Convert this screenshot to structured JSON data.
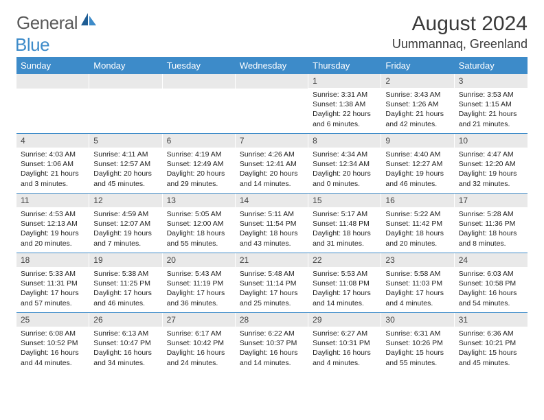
{
  "logo": {
    "text1": "General",
    "text2": "Blue"
  },
  "title": "August 2024",
  "location": "Uummannaq, Greenland",
  "day_headers": [
    "Sunday",
    "Monday",
    "Tuesday",
    "Wednesday",
    "Thursday",
    "Friday",
    "Saturday"
  ],
  "colors": {
    "header_bg": "#3d8bc9",
    "daynum_bg": "#e9e9e9",
    "rule": "#3d8bc9",
    "text": "#222222"
  },
  "weeks": [
    [
      {
        "n": "",
        "sr": "",
        "ss": "",
        "dl": ""
      },
      {
        "n": "",
        "sr": "",
        "ss": "",
        "dl": ""
      },
      {
        "n": "",
        "sr": "",
        "ss": "",
        "dl": ""
      },
      {
        "n": "",
        "sr": "",
        "ss": "",
        "dl": ""
      },
      {
        "n": "1",
        "sr": "Sunrise: 3:31 AM",
        "ss": "Sunset: 1:38 AM",
        "dl": "Daylight: 22 hours and 6 minutes."
      },
      {
        "n": "2",
        "sr": "Sunrise: 3:43 AM",
        "ss": "Sunset: 1:26 AM",
        "dl": "Daylight: 21 hours and 42 minutes."
      },
      {
        "n": "3",
        "sr": "Sunrise: 3:53 AM",
        "ss": "Sunset: 1:15 AM",
        "dl": "Daylight: 21 hours and 21 minutes."
      }
    ],
    [
      {
        "n": "4",
        "sr": "Sunrise: 4:03 AM",
        "ss": "Sunset: 1:06 AM",
        "dl": "Daylight: 21 hours and 3 minutes."
      },
      {
        "n": "5",
        "sr": "Sunrise: 4:11 AM",
        "ss": "Sunset: 12:57 AM",
        "dl": "Daylight: 20 hours and 45 minutes."
      },
      {
        "n": "6",
        "sr": "Sunrise: 4:19 AM",
        "ss": "Sunset: 12:49 AM",
        "dl": "Daylight: 20 hours and 29 minutes."
      },
      {
        "n": "7",
        "sr": "Sunrise: 4:26 AM",
        "ss": "Sunset: 12:41 AM",
        "dl": "Daylight: 20 hours and 14 minutes."
      },
      {
        "n": "8",
        "sr": "Sunrise: 4:34 AM",
        "ss": "Sunset: 12:34 AM",
        "dl": "Daylight: 20 hours and 0 minutes."
      },
      {
        "n": "9",
        "sr": "Sunrise: 4:40 AM",
        "ss": "Sunset: 12:27 AM",
        "dl": "Daylight: 19 hours and 46 minutes."
      },
      {
        "n": "10",
        "sr": "Sunrise: 4:47 AM",
        "ss": "Sunset: 12:20 AM",
        "dl": "Daylight: 19 hours and 32 minutes."
      }
    ],
    [
      {
        "n": "11",
        "sr": "Sunrise: 4:53 AM",
        "ss": "Sunset: 12:13 AM",
        "dl": "Daylight: 19 hours and 20 minutes."
      },
      {
        "n": "12",
        "sr": "Sunrise: 4:59 AM",
        "ss": "Sunset: 12:07 AM",
        "dl": "Daylight: 19 hours and 7 minutes."
      },
      {
        "n": "13",
        "sr": "Sunrise: 5:05 AM",
        "ss": "Sunset: 12:00 AM",
        "dl": "Daylight: 18 hours and 55 minutes."
      },
      {
        "n": "14",
        "sr": "Sunrise: 5:11 AM",
        "ss": "Sunset: 11:54 PM",
        "dl": "Daylight: 18 hours and 43 minutes."
      },
      {
        "n": "15",
        "sr": "Sunrise: 5:17 AM",
        "ss": "Sunset: 11:48 PM",
        "dl": "Daylight: 18 hours and 31 minutes."
      },
      {
        "n": "16",
        "sr": "Sunrise: 5:22 AM",
        "ss": "Sunset: 11:42 PM",
        "dl": "Daylight: 18 hours and 20 minutes."
      },
      {
        "n": "17",
        "sr": "Sunrise: 5:28 AM",
        "ss": "Sunset: 11:36 PM",
        "dl": "Daylight: 18 hours and 8 minutes."
      }
    ],
    [
      {
        "n": "18",
        "sr": "Sunrise: 5:33 AM",
        "ss": "Sunset: 11:31 PM",
        "dl": "Daylight: 17 hours and 57 minutes."
      },
      {
        "n": "19",
        "sr": "Sunrise: 5:38 AM",
        "ss": "Sunset: 11:25 PM",
        "dl": "Daylight: 17 hours and 46 minutes."
      },
      {
        "n": "20",
        "sr": "Sunrise: 5:43 AM",
        "ss": "Sunset: 11:19 PM",
        "dl": "Daylight: 17 hours and 36 minutes."
      },
      {
        "n": "21",
        "sr": "Sunrise: 5:48 AM",
        "ss": "Sunset: 11:14 PM",
        "dl": "Daylight: 17 hours and 25 minutes."
      },
      {
        "n": "22",
        "sr": "Sunrise: 5:53 AM",
        "ss": "Sunset: 11:08 PM",
        "dl": "Daylight: 17 hours and 14 minutes."
      },
      {
        "n": "23",
        "sr": "Sunrise: 5:58 AM",
        "ss": "Sunset: 11:03 PM",
        "dl": "Daylight: 17 hours and 4 minutes."
      },
      {
        "n": "24",
        "sr": "Sunrise: 6:03 AM",
        "ss": "Sunset: 10:58 PM",
        "dl": "Daylight: 16 hours and 54 minutes."
      }
    ],
    [
      {
        "n": "25",
        "sr": "Sunrise: 6:08 AM",
        "ss": "Sunset: 10:52 PM",
        "dl": "Daylight: 16 hours and 44 minutes."
      },
      {
        "n": "26",
        "sr": "Sunrise: 6:13 AM",
        "ss": "Sunset: 10:47 PM",
        "dl": "Daylight: 16 hours and 34 minutes."
      },
      {
        "n": "27",
        "sr": "Sunrise: 6:17 AM",
        "ss": "Sunset: 10:42 PM",
        "dl": "Daylight: 16 hours and 24 minutes."
      },
      {
        "n": "28",
        "sr": "Sunrise: 6:22 AM",
        "ss": "Sunset: 10:37 PM",
        "dl": "Daylight: 16 hours and 14 minutes."
      },
      {
        "n": "29",
        "sr": "Sunrise: 6:27 AM",
        "ss": "Sunset: 10:31 PM",
        "dl": "Daylight: 16 hours and 4 minutes."
      },
      {
        "n": "30",
        "sr": "Sunrise: 6:31 AM",
        "ss": "Sunset: 10:26 PM",
        "dl": "Daylight: 15 hours and 55 minutes."
      },
      {
        "n": "31",
        "sr": "Sunrise: 6:36 AM",
        "ss": "Sunset: 10:21 PM",
        "dl": "Daylight: 15 hours and 45 minutes."
      }
    ]
  ]
}
